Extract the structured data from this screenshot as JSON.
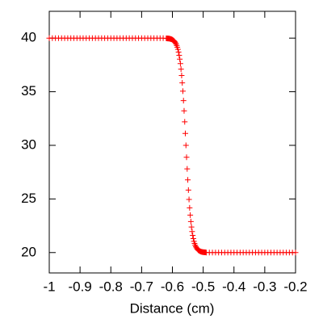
{
  "chart_data": {
    "type": "scatter",
    "xlabel": "Distance (cm)",
    "xlim": [
      -1,
      -0.2
    ],
    "ylim": [
      18.1,
      42.5
    ],
    "xticks": [
      -1,
      -0.9,
      -0.8,
      -0.7,
      -0.6,
      -0.5,
      -0.4,
      -0.3,
      -0.2
    ],
    "yticks": [
      20,
      25,
      30,
      35,
      40
    ],
    "marker": "+",
    "series": [
      {
        "color": "#ff0000",
        "x": [
          -1,
          -0.99,
          -0.98,
          -0.97,
          -0.96,
          -0.95,
          -0.94,
          -0.93,
          -0.92,
          -0.91,
          -0.9,
          -0.89,
          -0.88,
          -0.87,
          -0.86,
          -0.85,
          -0.84,
          -0.83,
          -0.82,
          -0.81,
          -0.8,
          -0.79,
          -0.78,
          -0.77,
          -0.76,
          -0.75,
          -0.74,
          -0.73,
          -0.72,
          -0.71,
          -0.7,
          -0.69,
          -0.68,
          -0.67,
          -0.66,
          -0.65,
          -0.64,
          -0.63,
          -0.62,
          -0.618,
          -0.616,
          -0.614,
          -0.612,
          -0.61,
          -0.608,
          -0.606,
          -0.604,
          -0.602,
          -0.6,
          -0.598,
          -0.596,
          -0.594,
          -0.592,
          -0.59,
          -0.588,
          -0.586,
          -0.584,
          -0.582,
          -0.58,
          -0.578,
          -0.576,
          -0.574,
          -0.572,
          -0.57,
          -0.568,
          -0.566,
          -0.564,
          -0.562,
          -0.56,
          -0.558,
          -0.556,
          -0.554,
          -0.552,
          -0.55,
          -0.548,
          -0.546,
          -0.544,
          -0.542,
          -0.54,
          -0.538,
          -0.536,
          -0.534,
          -0.532,
          -0.53,
          -0.528,
          -0.526,
          -0.524,
          -0.522,
          -0.52,
          -0.518,
          -0.516,
          -0.514,
          -0.512,
          -0.51,
          -0.508,
          -0.506,
          -0.504,
          -0.502,
          -0.5,
          -0.498,
          -0.496,
          -0.494,
          -0.492,
          -0.49,
          -0.48,
          -0.47,
          -0.46,
          -0.45,
          -0.44,
          -0.43,
          -0.42,
          -0.41,
          -0.4,
          -0.39,
          -0.38,
          -0.37,
          -0.36,
          -0.35,
          -0.34,
          -0.33,
          -0.32,
          -0.31,
          -0.3,
          -0.29,
          -0.28,
          -0.27,
          -0.26,
          -0.25,
          -0.24,
          -0.23,
          -0.22,
          -0.21,
          -0.2
        ],
        "values": [
          40,
          40,
          40,
          40,
          40,
          40,
          40,
          40,
          40,
          40,
          40,
          40,
          40,
          40,
          40,
          40,
          40,
          40,
          40,
          40,
          40,
          40,
          40,
          40,
          40,
          40,
          40,
          40,
          40,
          40,
          40,
          40,
          40,
          40,
          40,
          40,
          40,
          40,
          39.98,
          39.98,
          39.97,
          39.97,
          39.96,
          39.95,
          39.94,
          39.92,
          39.9,
          39.88,
          39.85,
          39.81,
          39.77,
          39.71,
          39.64,
          39.55,
          39.44,
          39.31,
          39.15,
          38.95,
          38.7,
          38.4,
          38.04,
          37.62,
          37.11,
          36.51,
          35.83,
          35.05,
          34.17,
          33.22,
          32.19,
          31.11,
          30,
          28.89,
          27.81,
          26.78,
          25.83,
          24.95,
          24.17,
          23.49,
          22.89,
          22.38,
          21.96,
          21.6,
          21.3,
          21.05,
          20.85,
          20.69,
          20.56,
          20.45,
          20.36,
          20.29,
          20.23,
          20.19,
          20.15,
          20.12,
          20.1,
          20.08,
          20.06,
          20.05,
          20.04,
          20.03,
          20.03,
          20.02,
          20.02,
          20,
          20,
          20,
          20,
          20,
          20,
          20,
          20,
          20,
          20,
          20,
          20,
          20,
          20,
          20,
          20,
          20,
          20,
          20,
          20,
          20,
          20,
          20,
          20,
          20,
          20,
          20,
          20,
          20,
          20
        ]
      }
    ]
  }
}
